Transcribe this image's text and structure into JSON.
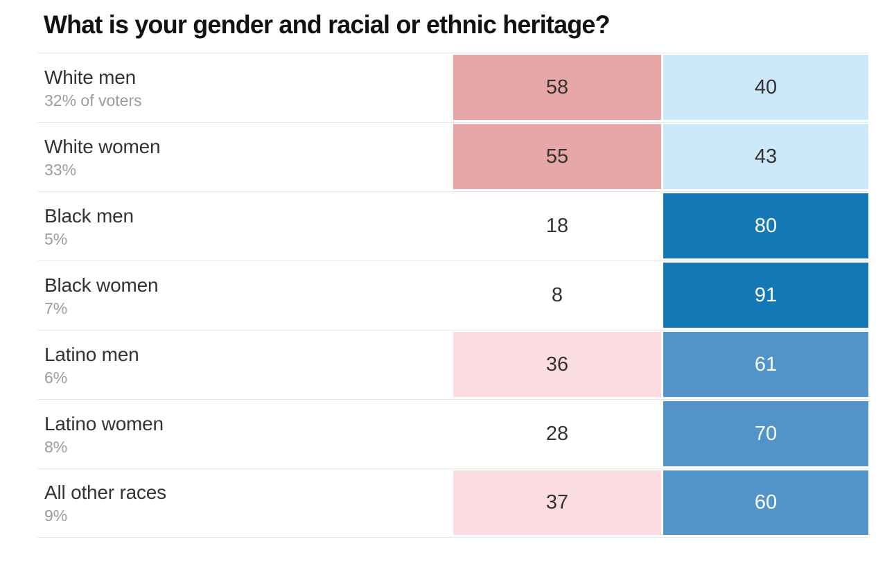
{
  "title": "What is your gender and racial or ethnic heritage?",
  "colors": {
    "rep_medium": "#e8a7a7",
    "rep_light": "#fbdce0",
    "dem_light": "#cde8f8",
    "dem_medium": "#5294c9",
    "dem_dark": "#1478b7",
    "text_dark": "#333333",
    "text_light": "#ffffff",
    "text_muted": "#9b9b9b",
    "divider": "#e7e7e7",
    "title_text": "#121212"
  },
  "chart_data": {
    "type": "heatmap",
    "title": "What is your gender and racial or ethnic heritage?",
    "categories": [
      "White men",
      "White women",
      "Black men",
      "Black women",
      "Latino men",
      "Latino women",
      "All other races"
    ],
    "category_shares": [
      "32% of voters",
      "33%",
      "5%",
      "7%",
      "6%",
      "8%",
      "9%"
    ],
    "series": [
      {
        "name": "red",
        "values": [
          58,
          55,
          18,
          8,
          36,
          28,
          37
        ]
      },
      {
        "name": "blue",
        "values": [
          40,
          43,
          80,
          91,
          61,
          70,
          60
        ]
      }
    ],
    "legend_position": "none",
    "grid": "row-dividers",
    "rows": [
      {
        "label": "White men",
        "share": "32% of voters",
        "red": {
          "value": "58",
          "bg": "#e8a7a7",
          "fg": "#333333"
        },
        "blue": {
          "value": "40",
          "bg": "#cde8f8",
          "fg": "#333333"
        }
      },
      {
        "label": "White women",
        "share": "33%",
        "red": {
          "value": "55",
          "bg": "#e8a7a7",
          "fg": "#333333"
        },
        "blue": {
          "value": "43",
          "bg": "#cde8f8",
          "fg": "#333333"
        }
      },
      {
        "label": "Black men",
        "share": "5%",
        "red": {
          "value": "18",
          "bg": "transparent",
          "fg": "#333333"
        },
        "blue": {
          "value": "80",
          "bg": "#1478b7",
          "fg": "#ffffff"
        }
      },
      {
        "label": "Black women",
        "share": "7%",
        "red": {
          "value": "8",
          "bg": "transparent",
          "fg": "#333333"
        },
        "blue": {
          "value": "91",
          "bg": "#1478b7",
          "fg": "#ffffff"
        }
      },
      {
        "label": "Latino men",
        "share": "6%",
        "red": {
          "value": "36",
          "bg": "#fbdce0",
          "fg": "#333333"
        },
        "blue": {
          "value": "61",
          "bg": "#5294c9",
          "fg": "#ffffff"
        }
      },
      {
        "label": "Latino women",
        "share": "8%",
        "red": {
          "value": "28",
          "bg": "transparent",
          "fg": "#333333"
        },
        "blue": {
          "value": "70",
          "bg": "#5294c9",
          "fg": "#ffffff"
        }
      },
      {
        "label": "All other races",
        "share": "9%",
        "red": {
          "value": "37",
          "bg": "#fbdce0",
          "fg": "#333333"
        },
        "blue": {
          "value": "60",
          "bg": "#5294c9",
          "fg": "#ffffff"
        }
      }
    ]
  }
}
